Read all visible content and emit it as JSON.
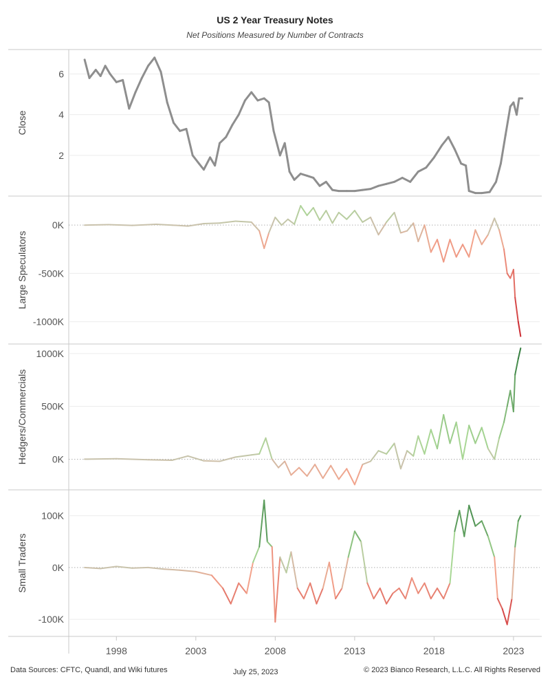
{
  "title": "US 2 Year Treasury Notes",
  "subtitle": "Net Positions Measured by Number of Contracts",
  "footer": {
    "sources": "Data Sources: CFTC, Quandl, and Wiki futures",
    "date": "July 25, 2023",
    "copyright": "© 2023 Bianco Research, L.L.C. All Rights Reserved"
  },
  "colors": {
    "close_line": "#8e8e8e",
    "neutral": "#c9c2ac",
    "positive_light": "#a9d795",
    "positive_dark": "#2f7a3c",
    "negative_light": "#f3a48c",
    "negative_dark": "#c81d28",
    "divider": "#c8c8c8",
    "zero_line": "#b0b0b0"
  },
  "chart_data": {
    "type": "line",
    "x_ticks": [
      "1998",
      "2003",
      "2008",
      "2013",
      "2018",
      "2023"
    ],
    "x_range": [
      1995.0,
      2024.0
    ],
    "panels": [
      {
        "ylabel": "Close",
        "ylim": [
          0,
          7.2
        ],
        "yticks": [
          {
            "v": 2,
            "label": "2"
          },
          {
            "v": 4,
            "label": "4"
          },
          {
            "v": 6,
            "label": "6"
          }
        ],
        "zero_line": false,
        "color_mode": "gray",
        "series": [
          [
            1996.0,
            6.7
          ],
          [
            1996.3,
            5.8
          ],
          [
            1996.7,
            6.2
          ],
          [
            1997.0,
            5.9
          ],
          [
            1997.3,
            6.4
          ],
          [
            1997.6,
            6.0
          ],
          [
            1998.0,
            5.6
          ],
          [
            1998.4,
            5.7
          ],
          [
            1998.8,
            4.3
          ],
          [
            1999.2,
            5.1
          ],
          [
            1999.6,
            5.8
          ],
          [
            2000.0,
            6.4
          ],
          [
            2000.4,
            6.8
          ],
          [
            2000.8,
            6.1
          ],
          [
            2001.2,
            4.6
          ],
          [
            2001.6,
            3.6
          ],
          [
            2002.0,
            3.2
          ],
          [
            2002.4,
            3.3
          ],
          [
            2002.8,
            2.0
          ],
          [
            2003.2,
            1.6
          ],
          [
            2003.5,
            1.3
          ],
          [
            2003.9,
            1.9
          ],
          [
            2004.2,
            1.5
          ],
          [
            2004.5,
            2.6
          ],
          [
            2004.9,
            2.9
          ],
          [
            2005.3,
            3.5
          ],
          [
            2005.7,
            4.0
          ],
          [
            2006.1,
            4.7
          ],
          [
            2006.5,
            5.1
          ],
          [
            2006.9,
            4.7
          ],
          [
            2007.3,
            4.8
          ],
          [
            2007.6,
            4.6
          ],
          [
            2007.9,
            3.2
          ],
          [
            2008.3,
            2.0
          ],
          [
            2008.6,
            2.6
          ],
          [
            2008.9,
            1.2
          ],
          [
            2009.2,
            0.8
          ],
          [
            2009.6,
            1.1
          ],
          [
            2010.0,
            1.0
          ],
          [
            2010.4,
            0.9
          ],
          [
            2010.8,
            0.5
          ],
          [
            2011.2,
            0.7
          ],
          [
            2011.6,
            0.3
          ],
          [
            2012.0,
            0.25
          ],
          [
            2012.5,
            0.25
          ],
          [
            2013.0,
            0.25
          ],
          [
            2013.5,
            0.3
          ],
          [
            2014.0,
            0.35
          ],
          [
            2014.5,
            0.5
          ],
          [
            2015.0,
            0.6
          ],
          [
            2015.5,
            0.7
          ],
          [
            2016.0,
            0.9
          ],
          [
            2016.5,
            0.7
          ],
          [
            2017.0,
            1.2
          ],
          [
            2017.5,
            1.4
          ],
          [
            2018.0,
            1.9
          ],
          [
            2018.5,
            2.5
          ],
          [
            2018.9,
            2.9
          ],
          [
            2019.3,
            2.3
          ],
          [
            2019.7,
            1.6
          ],
          [
            2020.0,
            1.5
          ],
          [
            2020.2,
            0.25
          ],
          [
            2020.6,
            0.15
          ],
          [
            2021.0,
            0.15
          ],
          [
            2021.5,
            0.2
          ],
          [
            2021.9,
            0.7
          ],
          [
            2022.2,
            1.6
          ],
          [
            2022.5,
            3.0
          ],
          [
            2022.8,
            4.4
          ],
          [
            2023.0,
            4.6
          ],
          [
            2023.2,
            4.0
          ],
          [
            2023.35,
            4.8
          ],
          [
            2023.55,
            4.8
          ]
        ]
      },
      {
        "ylabel": "Large Speculators",
        "ylim": [
          -1230000,
          300000
        ],
        "yticks": [
          {
            "v": -1000000,
            "label": "-1000K"
          },
          {
            "v": -500000,
            "label": "-500K"
          },
          {
            "v": 0,
            "label": "0K"
          }
        ],
        "zero_line": true,
        "color_mode": "diverging",
        "color_scale": 1200000,
        "series": [
          [
            1996.0,
            0
          ],
          [
            1997.5,
            5000
          ],
          [
            1999.0,
            -3000
          ],
          [
            2000.5,
            8000
          ],
          [
            2001.5,
            0
          ],
          [
            2002.5,
            -10000
          ],
          [
            2003.5,
            15000
          ],
          [
            2004.5,
            20000
          ],
          [
            2005.5,
            40000
          ],
          [
            2006.5,
            30000
          ],
          [
            2007.0,
            -60000
          ],
          [
            2007.3,
            -240000
          ],
          [
            2007.6,
            -80000
          ],
          [
            2008.0,
            80000
          ],
          [
            2008.4,
            0
          ],
          [
            2008.8,
            60000
          ],
          [
            2009.2,
            10000
          ],
          [
            2009.6,
            200000
          ],
          [
            2010.0,
            100000
          ],
          [
            2010.4,
            180000
          ],
          [
            2010.8,
            50000
          ],
          [
            2011.2,
            150000
          ],
          [
            2011.6,
            20000
          ],
          [
            2012.0,
            130000
          ],
          [
            2012.5,
            60000
          ],
          [
            2013.0,
            150000
          ],
          [
            2013.5,
            30000
          ],
          [
            2014.0,
            80000
          ],
          [
            2014.5,
            -100000
          ],
          [
            2015.0,
            30000
          ],
          [
            2015.5,
            130000
          ],
          [
            2015.9,
            -80000
          ],
          [
            2016.3,
            -60000
          ],
          [
            2016.7,
            20000
          ],
          [
            2017.0,
            -170000
          ],
          [
            2017.4,
            0
          ],
          [
            2017.8,
            -280000
          ],
          [
            2018.2,
            -150000
          ],
          [
            2018.6,
            -380000
          ],
          [
            2019.0,
            -150000
          ],
          [
            2019.4,
            -330000
          ],
          [
            2019.8,
            -200000
          ],
          [
            2020.2,
            -330000
          ],
          [
            2020.6,
            -50000
          ],
          [
            2021.0,
            -200000
          ],
          [
            2021.4,
            -100000
          ],
          [
            2021.8,
            70000
          ],
          [
            2022.1,
            -50000
          ],
          [
            2022.4,
            -250000
          ],
          [
            2022.6,
            -500000
          ],
          [
            2022.8,
            -550000
          ],
          [
            2023.0,
            -460000
          ],
          [
            2023.1,
            -750000
          ],
          [
            2023.3,
            -1000000
          ],
          [
            2023.45,
            -1150000
          ]
        ]
      },
      {
        "ylabel": "Hedgers/Commercials",
        "ylim": [
          -290000,
          1090000
        ],
        "yticks": [
          {
            "v": 0,
            "label": "0K"
          },
          {
            "v": 500000,
            "label": "500K"
          },
          {
            "v": 1000000,
            "label": "1000K"
          }
        ],
        "zero_line": true,
        "color_mode": "diverging",
        "color_scale": 1050000,
        "series": [
          [
            1996.0,
            0
          ],
          [
            1998.0,
            5000
          ],
          [
            2000.0,
            -5000
          ],
          [
            2001.5,
            -10000
          ],
          [
            2002.5,
            30000
          ],
          [
            2003.5,
            -15000
          ],
          [
            2004.5,
            -20000
          ],
          [
            2005.5,
            20000
          ],
          [
            2006.5,
            40000
          ],
          [
            2007.0,
            50000
          ],
          [
            2007.4,
            200000
          ],
          [
            2007.8,
            0
          ],
          [
            2008.2,
            -80000
          ],
          [
            2008.6,
            -20000
          ],
          [
            2009.0,
            -150000
          ],
          [
            2009.5,
            -80000
          ],
          [
            2010.0,
            -160000
          ],
          [
            2010.5,
            -50000
          ],
          [
            2011.0,
            -180000
          ],
          [
            2011.5,
            -60000
          ],
          [
            2012.0,
            -190000
          ],
          [
            2012.5,
            -90000
          ],
          [
            2013.0,
            -240000
          ],
          [
            2013.5,
            -50000
          ],
          [
            2014.0,
            -20000
          ],
          [
            2014.5,
            80000
          ],
          [
            2015.0,
            50000
          ],
          [
            2015.5,
            150000
          ],
          [
            2015.9,
            -90000
          ],
          [
            2016.3,
            80000
          ],
          [
            2016.7,
            30000
          ],
          [
            2017.0,
            220000
          ],
          [
            2017.4,
            50000
          ],
          [
            2017.8,
            280000
          ],
          [
            2018.2,
            100000
          ],
          [
            2018.6,
            420000
          ],
          [
            2019.0,
            150000
          ],
          [
            2019.4,
            350000
          ],
          [
            2019.8,
            0
          ],
          [
            2020.2,
            320000
          ],
          [
            2020.6,
            150000
          ],
          [
            2021.0,
            300000
          ],
          [
            2021.4,
            100000
          ],
          [
            2021.8,
            0
          ],
          [
            2022.1,
            200000
          ],
          [
            2022.4,
            350000
          ],
          [
            2022.6,
            500000
          ],
          [
            2022.8,
            650000
          ],
          [
            2023.0,
            450000
          ],
          [
            2023.1,
            800000
          ],
          [
            2023.3,
            950000
          ],
          [
            2023.45,
            1050000
          ]
        ]
      },
      {
        "ylabel": "Small Traders",
        "ylim": [
          -133000,
          150000
        ],
        "yticks": [
          {
            "v": -100000,
            "label": "-100K"
          },
          {
            "v": 0,
            "label": "0K"
          },
          {
            "v": 100000,
            "label": "100K"
          }
        ],
        "zero_line": true,
        "color_mode": "diverging",
        "color_scale": 130000,
        "series": [
          [
            1996.0,
            0
          ],
          [
            1997.0,
            -2000
          ],
          [
            1998.0,
            2000
          ],
          [
            1999.0,
            -1000
          ],
          [
            2000.0,
            0
          ],
          [
            2001.0,
            -3000
          ],
          [
            2002.0,
            -5000
          ],
          [
            2003.0,
            -8000
          ],
          [
            2004.0,
            -15000
          ],
          [
            2004.7,
            -40000
          ],
          [
            2005.2,
            -70000
          ],
          [
            2005.7,
            -30000
          ],
          [
            2006.2,
            -50000
          ],
          [
            2006.6,
            10000
          ],
          [
            2007.0,
            40000
          ],
          [
            2007.3,
            130000
          ],
          [
            2007.5,
            50000
          ],
          [
            2007.8,
            40000
          ],
          [
            2008.0,
            -105000
          ],
          [
            2008.3,
            20000
          ],
          [
            2008.7,
            -10000
          ],
          [
            2009.0,
            30000
          ],
          [
            2009.4,
            -40000
          ],
          [
            2009.8,
            -60000
          ],
          [
            2010.2,
            -30000
          ],
          [
            2010.6,
            -70000
          ],
          [
            2011.0,
            -40000
          ],
          [
            2011.4,
            10000
          ],
          [
            2011.8,
            -60000
          ],
          [
            2012.2,
            -40000
          ],
          [
            2012.6,
            20000
          ],
          [
            2013.0,
            70000
          ],
          [
            2013.4,
            50000
          ],
          [
            2013.8,
            -30000
          ],
          [
            2014.2,
            -60000
          ],
          [
            2014.6,
            -40000
          ],
          [
            2015.0,
            -70000
          ],
          [
            2015.4,
            -50000
          ],
          [
            2015.8,
            -40000
          ],
          [
            2016.2,
            -60000
          ],
          [
            2016.6,
            -20000
          ],
          [
            2017.0,
            -50000
          ],
          [
            2017.4,
            -30000
          ],
          [
            2017.8,
            -60000
          ],
          [
            2018.2,
            -40000
          ],
          [
            2018.6,
            -60000
          ],
          [
            2019.0,
            -30000
          ],
          [
            2019.3,
            70000
          ],
          [
            2019.6,
            110000
          ],
          [
            2019.9,
            60000
          ],
          [
            2020.2,
            120000
          ],
          [
            2020.6,
            80000
          ],
          [
            2021.0,
            90000
          ],
          [
            2021.4,
            60000
          ],
          [
            2021.8,
            20000
          ],
          [
            2022.0,
            -60000
          ],
          [
            2022.3,
            -80000
          ],
          [
            2022.6,
            -110000
          ],
          [
            2022.9,
            -60000
          ],
          [
            2023.1,
            40000
          ],
          [
            2023.3,
            90000
          ],
          [
            2023.45,
            100000
          ]
        ]
      }
    ]
  }
}
